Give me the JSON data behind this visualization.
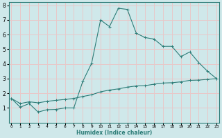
{
  "xlabel": "Humidex (Indice chaleur)",
  "ylabel": "",
  "bg_color": "#cfe8ea",
  "grid_color": "#e8c8c8",
  "line_color": "#2d7d78",
  "line1_x": [
    0,
    1,
    2,
    3,
    4,
    5,
    6,
    7,
    8,
    9,
    10,
    11,
    12,
    13,
    14,
    15,
    16,
    17,
    18,
    19,
    20,
    21,
    22,
    23
  ],
  "line1_y": [
    1.65,
    1.05,
    1.3,
    0.72,
    0.88,
    0.9,
    1.0,
    1.0,
    2.8,
    4.05,
    7.0,
    6.55,
    7.8,
    7.72,
    6.1,
    5.8,
    5.7,
    5.2,
    5.2,
    4.5,
    4.82,
    4.1,
    3.5,
    3.0
  ],
  "line2_x": [
    0,
    1,
    2,
    3,
    4,
    5,
    6,
    7,
    8,
    9,
    10,
    11,
    12,
    13,
    14,
    15,
    16,
    17,
    18,
    19,
    20,
    21,
    22,
    23
  ],
  "line2_y": [
    1.65,
    1.3,
    1.42,
    1.35,
    1.45,
    1.52,
    1.58,
    1.65,
    1.78,
    1.9,
    2.1,
    2.22,
    2.3,
    2.42,
    2.5,
    2.52,
    2.62,
    2.7,
    2.72,
    2.78,
    2.88,
    2.9,
    2.95,
    3.0
  ],
  "xlim": [
    -0.3,
    23.3
  ],
  "ylim": [
    0,
    8.2
  ],
  "yticks": [
    1,
    2,
    3,
    4,
    5,
    6,
    7,
    8
  ],
  "xticks": [
    0,
    1,
    2,
    3,
    4,
    5,
    6,
    7,
    8,
    9,
    10,
    11,
    12,
    13,
    14,
    15,
    16,
    17,
    18,
    19,
    20,
    21,
    22,
    23
  ]
}
